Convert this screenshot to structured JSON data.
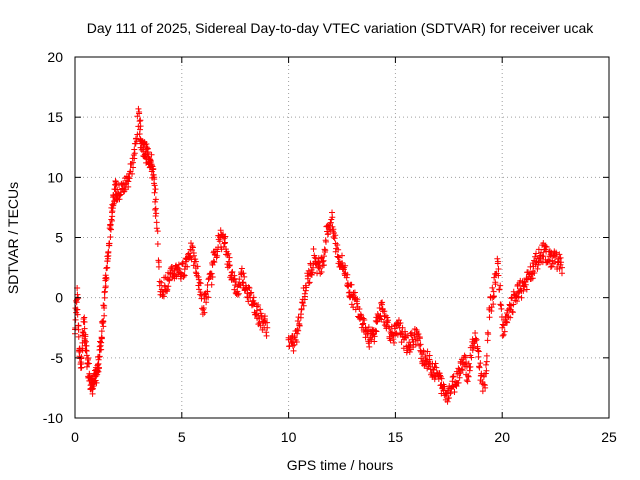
{
  "chart_data": {
    "type": "scatter",
    "title": "Day 111 of 2025, Sidereal Day-to-day VTEC variation (SDTVAR) for receiver ucak",
    "xlabel": "GPS time / hours",
    "ylabel": "SDTVAR / TECUs",
    "xlim": [
      0,
      25
    ],
    "ylim": [
      -10,
      20
    ],
    "xticks": [
      0,
      5,
      10,
      15,
      20,
      25
    ],
    "yticks": [
      -10,
      -5,
      0,
      5,
      10,
      15,
      20
    ],
    "grid": true,
    "marker": "plus",
    "colors": {
      "series": "#ff0000",
      "grid": "#a0a0a0",
      "axis": "#000000"
    },
    "series": [
      {
        "name": "SDTVAR",
        "x": [
          0.0,
          0.1,
          0.2,
          0.3,
          0.4,
          0.5,
          0.6,
          0.7,
          0.8,
          0.9,
          1.0,
          1.1,
          1.2,
          1.3,
          1.4,
          1.5,
          1.6,
          1.7,
          1.8,
          1.9,
          2.0,
          2.2,
          2.4,
          2.6,
          2.8,
          3.0,
          3.1,
          3.2,
          3.3,
          3.4,
          3.5,
          3.6,
          3.7,
          3.8,
          4.0,
          4.2,
          4.4,
          4.6,
          4.8,
          5.0,
          5.2,
          5.4,
          5.6,
          5.8,
          6.0,
          6.2,
          6.4,
          6.6,
          6.8,
          7.0,
          7.2,
          7.4,
          7.6,
          7.8,
          8.0,
          8.2,
          8.4,
          8.6,
          8.8,
          9.0,
          10.0,
          10.2,
          10.4,
          10.6,
          10.8,
          11.0,
          11.2,
          11.4,
          11.6,
          11.8,
          12.0,
          12.2,
          12.4,
          12.6,
          12.8,
          13.0,
          13.2,
          13.4,
          13.6,
          13.8,
          14.0,
          14.2,
          14.4,
          14.6,
          14.8,
          15.0,
          15.2,
          15.4,
          15.6,
          15.8,
          16.0,
          16.2,
          16.4,
          16.6,
          16.8,
          17.0,
          17.2,
          17.4,
          17.6,
          17.8,
          18.0,
          18.2,
          18.4,
          18.6,
          18.8,
          19.0,
          19.2,
          19.4,
          19.6,
          19.8,
          20.0,
          20.2,
          20.4,
          20.6,
          20.8,
          21.0,
          21.2,
          21.4,
          21.6,
          21.8,
          22.0,
          22.2,
          22.4,
          22.6,
          22.8
        ],
        "y": [
          -3.0,
          0.8,
          -4.5,
          -5.5,
          -2.0,
          -4.0,
          -5.5,
          -6.5,
          -7.5,
          -7.0,
          -6.5,
          -5.5,
          -4.0,
          -2.0,
          0.5,
          2.5,
          4.5,
          6.5,
          8.5,
          9.0,
          8.5,
          9.0,
          9.5,
          10.5,
          12.0,
          15.3,
          13.0,
          12.5,
          12.0,
          12.0,
          11.5,
          11.0,
          9.5,
          7.0,
          0.5,
          1.0,
          1.5,
          2.0,
          2.5,
          2.0,
          3.0,
          4.0,
          3.0,
          1.5,
          -1.0,
          0.5,
          2.0,
          4.0,
          5.0,
          4.5,
          3.0,
          1.5,
          0.5,
          2.0,
          1.0,
          0.0,
          -0.5,
          -1.5,
          -2.0,
          -2.5,
          -3.5,
          -4.0,
          -3.0,
          -1.0,
          1.0,
          2.0,
          3.5,
          2.5,
          3.0,
          5.5,
          6.5,
          4.5,
          3.0,
          2.5,
          1.0,
          0.0,
          -0.5,
          -1.5,
          -2.5,
          -3.5,
          -3.0,
          -1.5,
          -1.0,
          -2.0,
          -3.0,
          -3.0,
          -2.5,
          -3.5,
          -4.0,
          -3.5,
          -3.0,
          -4.5,
          -5.0,
          -5.5,
          -6.0,
          -6.5,
          -7.5,
          -8.0,
          -7.5,
          -7.0,
          -6.0,
          -5.0,
          -6.5,
          -4.0,
          -3.5,
          -6.5,
          -7.5,
          -1.0,
          0.5,
          3.0,
          -2.5,
          -2.0,
          -1.0,
          0.0,
          0.5,
          1.0,
          1.5,
          2.0,
          3.0,
          3.5,
          4.0,
          3.0,
          3.5,
          3.0,
          2.5
        ]
      }
    ]
  }
}
